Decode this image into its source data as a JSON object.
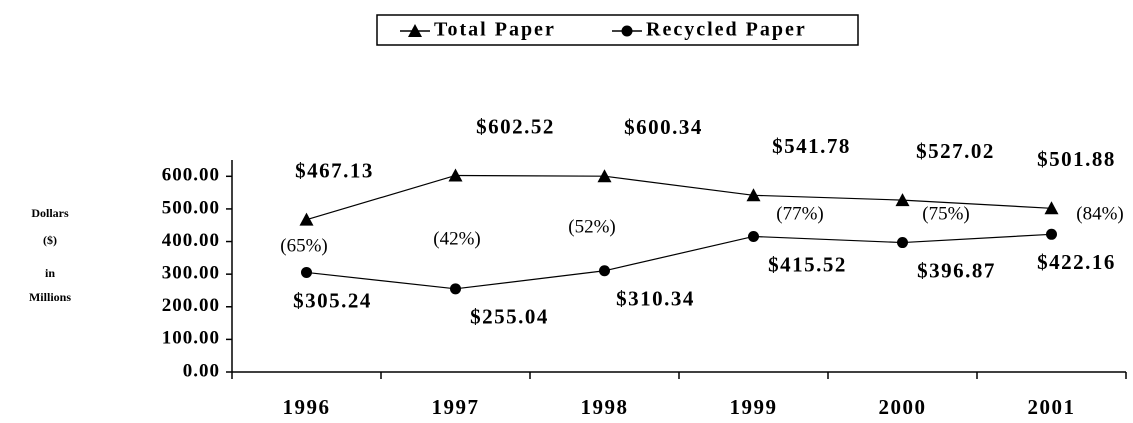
{
  "chart_data": {
    "type": "line",
    "y_label": [
      "Dollars",
      "($)",
      "in",
      "Millions"
    ],
    "categories": [
      "1996",
      "1997",
      "1998",
      "1999",
      "2000",
      "2001"
    ],
    "series": [
      {
        "name": "Total Paper",
        "color": "#000000",
        "marker": "triangle",
        "values": [
          467.13,
          602.52,
          600.34,
          541.78,
          527.02,
          501.88
        ],
        "value_labels": [
          "$467.13",
          "$602.52",
          "$600.34",
          "$541.78",
          "$527.02",
          "$501.88"
        ]
      },
      {
        "name": "Recycled Paper",
        "color": "#000000",
        "marker": "circle",
        "values": [
          305.24,
          255.04,
          310.34,
          415.52,
          396.87,
          422.16
        ],
        "value_labels": [
          "$305.24",
          "$255.04",
          "$310.34",
          "$415.52",
          "$396.87",
          "$422.16"
        ]
      }
    ],
    "annotations": [
      "(65%)",
      "(42%)",
      "(52%)",
      "(77%)",
      "(75%)",
      "(84%)"
    ],
    "ylim": [
      0,
      650
    ],
    "yticks": [
      {
        "value": 0,
        "label": "0.00"
      },
      {
        "value": 100,
        "label": "100.00"
      },
      {
        "value": 200,
        "label": "200.00"
      },
      {
        "value": 300,
        "label": "300.00"
      },
      {
        "value": 400,
        "label": "400.00"
      },
      {
        "value": 500,
        "label": "500.00"
      },
      {
        "value": 600,
        "label": "600.00"
      }
    ],
    "legend": "top"
  }
}
